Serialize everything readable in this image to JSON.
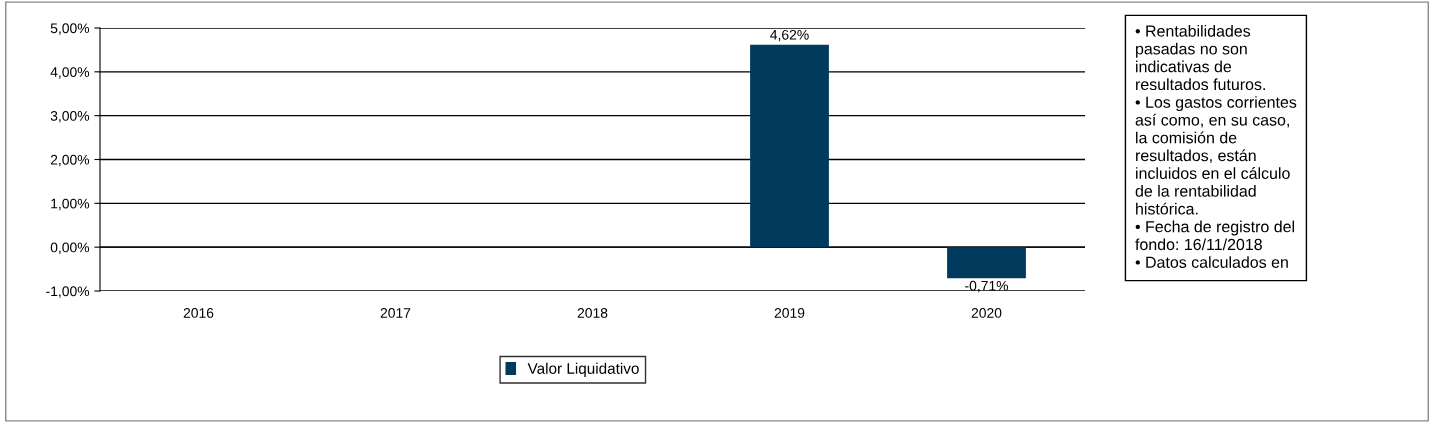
{
  "chart_data": {
    "type": "bar",
    "categories": [
      "2016",
      "2017",
      "2018",
      "2019",
      "2020"
    ],
    "series": [
      {
        "name": "Valor Liquidativo",
        "color": "#003a5c",
        "values": [
          null,
          null,
          null,
          4.62,
          -0.71
        ],
        "value_labels": [
          null,
          null,
          null,
          "4,62%",
          "-0,71%"
        ]
      }
    ],
    "ylim": [
      -1,
      5
    ],
    "yticks": [
      {
        "value": -1,
        "label": "-1,00%"
      },
      {
        "value": 0,
        "label": "0,00%"
      },
      {
        "value": 1,
        "label": "1,00%"
      },
      {
        "value": 2,
        "label": "2,00%"
      },
      {
        "value": 3,
        "label": "3,00%"
      },
      {
        "value": 4,
        "label": "4,00%"
      },
      {
        "value": 5,
        "label": "5,00%"
      }
    ],
    "grid": "y",
    "legend": "bottom",
    "annotations": [
      "• Rentabilidades\npasadas no son\nindicativas de\nresultados futuros.\n• Los gastos corrientes\nasí como, en su caso,\nla comisión de\nresultados, están\nincluidos en el cálculo\nde la rentabilidad\nhistórica.\n• Fecha de registro del\nfondo: 16/11/2018\n• Datos calculados en"
    ]
  }
}
